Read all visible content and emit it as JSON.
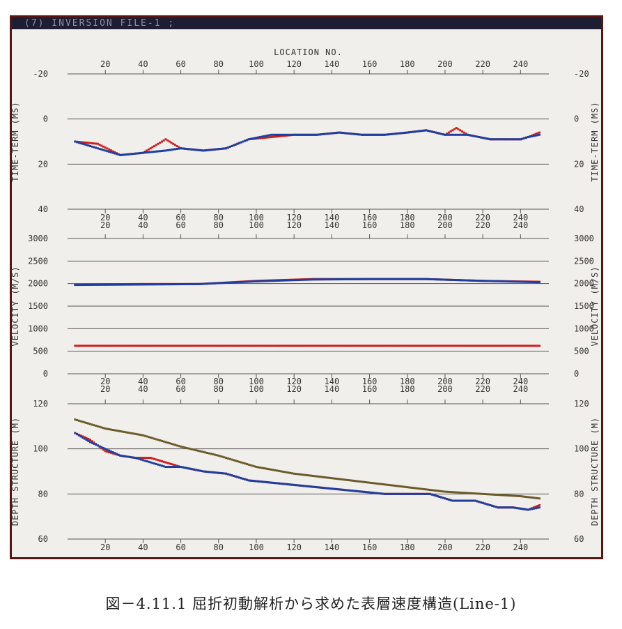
{
  "window_title": "(7) INVERSION FILE-1 ;",
  "caption": "図－4.11.1  屈折初動解析から求めた表層速度構造(Line-1)",
  "top_axis_label": "LOCATION NO.",
  "location_ticks": [
    "20",
    "40",
    "60",
    "80",
    "100",
    "120",
    "140",
    "160",
    "180",
    "200",
    "220",
    "240"
  ],
  "chart_data": [
    {
      "type": "scatter",
      "ylabel_left": "TIME-TERM (MS)",
      "ylabel_right": "TIME-TERM (MS)",
      "ylim": [
        -20,
        40
      ],
      "y_inverted": true,
      "yticks": [
        "-20",
        "0",
        "20",
        "40"
      ],
      "xlim": [
        0,
        255
      ],
      "series": [
        {
          "color": "#cc1f1f",
          "x": [
            4,
            16,
            28,
            40,
            52,
            60,
            72,
            84,
            96,
            108,
            120,
            132,
            144,
            156,
            168,
            180,
            190,
            200,
            206,
            212,
            224,
            232,
            240,
            244,
            250
          ],
          "y": [
            10,
            11,
            16,
            15,
            9,
            13,
            14,
            13,
            9,
            8,
            7,
            7,
            6,
            7,
            7,
            6,
            5,
            7,
            4,
            7,
            9,
            9,
            9,
            8,
            6
          ]
        },
        {
          "color": "#1f3fa0",
          "x": [
            4,
            16,
            28,
            40,
            52,
            60,
            72,
            84,
            96,
            108,
            120,
            132,
            144,
            156,
            168,
            180,
            190,
            200,
            212,
            224,
            232,
            240,
            244,
            250
          ],
          "y": [
            10,
            13,
            16,
            15,
            14,
            13,
            14,
            13,
            9,
            7,
            7,
            7,
            6,
            7,
            7,
            6,
            5,
            7,
            7,
            9,
            9,
            9,
            8,
            7
          ]
        }
      ]
    },
    {
      "type": "scatter",
      "ylabel_left": "VELOCITY (M/S)",
      "ylabel_right": "VELOCITY (M/S)",
      "ylim": [
        0,
        3000
      ],
      "yticks": [
        "0",
        "500",
        "1000",
        "1500",
        "2000",
        "2500",
        "3000"
      ],
      "xlim": [
        0,
        255
      ],
      "series": [
        {
          "color": "#cc1f1f",
          "x": [
            4,
            40,
            70,
            100,
            130,
            160,
            190,
            220,
            250
          ],
          "y": [
            1980,
            1990,
            1990,
            2060,
            2100,
            2100,
            2100,
            2060,
            2040
          ]
        },
        {
          "color": "#1f3fa0",
          "x": [
            4,
            40,
            70,
            100,
            130,
            160,
            190,
            220,
            250
          ],
          "y": [
            1970,
            1980,
            1990,
            2050,
            2090,
            2100,
            2100,
            2060,
            2030
          ]
        },
        {
          "color": "#cc1f1f",
          "x": [
            4,
            250
          ],
          "y": [
            620,
            620
          ]
        }
      ]
    },
    {
      "type": "scatter",
      "ylabel_left": "DEPTH STRUCTURE (M)",
      "ylabel_right": "DEPTH STRUCTURE (M)",
      "ylim": [
        60,
        120
      ],
      "yticks": [
        "60",
        "80",
        "100",
        "120"
      ],
      "xlim": [
        0,
        255
      ],
      "series": [
        {
          "color": "#cc1f1f",
          "x": [
            4,
            12,
            20,
            28,
            36,
            44,
            52,
            60,
            72,
            84,
            96,
            108,
            120,
            132,
            144,
            156,
            168,
            180,
            192,
            204,
            216,
            228,
            236,
            244,
            250
          ],
          "y": [
            107,
            104,
            99,
            97,
            96,
            96,
            94,
            92,
            90,
            89,
            86,
            85,
            84,
            83,
            82,
            81,
            80,
            80,
            80,
            77,
            77,
            74,
            74,
            73,
            75
          ]
        },
        {
          "color": "#1f3fa0",
          "x": [
            4,
            12,
            20,
            28,
            36,
            44,
            52,
            60,
            72,
            84,
            96,
            108,
            120,
            132,
            144,
            156,
            168,
            180,
            192,
            204,
            216,
            228,
            236,
            244,
            250
          ],
          "y": [
            107,
            103,
            100,
            97,
            96,
            94,
            92,
            92,
            90,
            89,
            86,
            85,
            84,
            83,
            82,
            81,
            80,
            80,
            80,
            77,
            77,
            74,
            74,
            73,
            74
          ]
        },
        {
          "color": "#6b5a2a",
          "x": [
            4,
            20,
            40,
            60,
            80,
            100,
            120,
            140,
            160,
            180,
            200,
            220,
            240,
            250
          ],
          "y": [
            113,
            109,
            106,
            101,
            97,
            92,
            89,
            87,
            85,
            83,
            81,
            80,
            79,
            78
          ]
        }
      ]
    }
  ]
}
